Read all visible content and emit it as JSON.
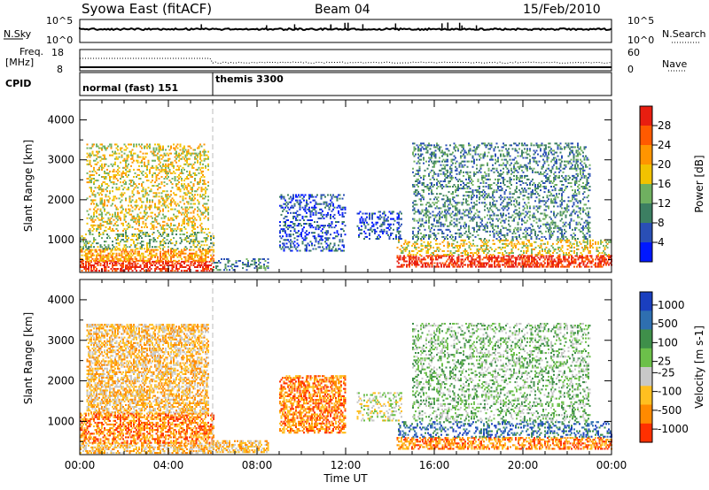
{
  "header": {
    "title": "Syowa East (fitACF)",
    "beam": "Beam 04",
    "date": "15/Feb/2010"
  },
  "summary_labels": {
    "nsky": "N.Sky",
    "freq_line1": "Freq.",
    "freq_line2": "[MHz]",
    "cpid": "CPID",
    "nsearch": "N.Search",
    "nave": "Nave",
    "nsky_ticks": [
      "10^5",
      "10^0"
    ],
    "nsearch_ticks": [
      "10^5",
      "10^0"
    ],
    "freq_ticks": [
      "18",
      "8"
    ],
    "nave_ticks": [
      "60",
      "0"
    ],
    "cpid_modes": [
      {
        "label": "normal (fast) 151",
        "start_hour": 0
      },
      {
        "label": "themis 3300",
        "start_hour": 6
      }
    ]
  },
  "chart_data": [
    {
      "type": "heatmap",
      "panel": "power",
      "ylabel": "Slant Range [km]",
      "xlabel": "Time UT",
      "xlim_hours": [
        0,
        24
      ],
      "ylim_km": [
        180,
        4500
      ],
      "yticks": [
        1000,
        2000,
        3000,
        4000
      ],
      "xticks": [
        "00:00",
        "04:00",
        "08:00",
        "12:00",
        "16:00",
        "20:00",
        "00:00"
      ],
      "colorbar": {
        "label": "Power [dB]",
        "ticks": [
          "4",
          "8",
          "12",
          "16",
          "20",
          "24",
          "28"
        ],
        "colors": [
          "#0018ff",
          "#2a4fb5",
          "#3c7f62",
          "#6fb060",
          "#f2c200",
          "#ff9500",
          "#ff5a00",
          "#e81e10"
        ]
      },
      "echo_regions": [
        {
          "t0": 0.0,
          "t1": 6.0,
          "r0": 200,
          "r1": 450,
          "level": 7
        },
        {
          "t0": 0.0,
          "t1": 6.0,
          "r0": 450,
          "r1": 750,
          "level": 5
        },
        {
          "t0": 0.0,
          "t1": 6.0,
          "r0": 750,
          "r1": 1200,
          "level": 3
        },
        {
          "t0": 0.3,
          "t1": 5.8,
          "r0": 1200,
          "r1": 3400,
          "level": 4
        },
        {
          "t0": 6.0,
          "t1": 8.5,
          "r0": 220,
          "r1": 500,
          "level": 2
        },
        {
          "t0": 9.0,
          "t1": 12.0,
          "r0": 700,
          "r1": 2100,
          "level": 1
        },
        {
          "t0": 12.5,
          "t1": 14.5,
          "r0": 1000,
          "r1": 1700,
          "level": 1
        },
        {
          "t0": 14.3,
          "t1": 24.0,
          "r0": 300,
          "r1": 600,
          "level": 7
        },
        {
          "t0": 14.3,
          "t1": 24.0,
          "r0": 600,
          "r1": 1000,
          "level": 4
        },
        {
          "t0": 15.0,
          "t1": 23.0,
          "r0": 1000,
          "r1": 3400,
          "level": 2
        }
      ]
    },
    {
      "type": "heatmap",
      "panel": "velocity",
      "ylabel": "Slant Range [km]",
      "xlabel": "Time UT",
      "xlim_hours": [
        0,
        24
      ],
      "ylim_km": [
        180,
        4500
      ],
      "yticks": [
        1000,
        2000,
        3000,
        4000
      ],
      "xticks": [
        "00:00",
        "04:00",
        "08:00",
        "12:00",
        "16:00",
        "20:00",
        "00:00"
      ],
      "colorbar": {
        "label": "Velocity [m s-1]",
        "ticks": [
          "1000",
          "500",
          "100",
          "25",
          "-25",
          "-100",
          "-500",
          "-1000"
        ],
        "colors": [
          "#1a3fbf",
          "#2e6fb0",
          "#3f8f4a",
          "#6cc04a",
          "#c8c8c8",
          "#ffbf20",
          "#ff8a00",
          "#ff3000"
        ]
      },
      "echo_regions": [
        {
          "t0": 0.0,
          "t1": 6.0,
          "r0": 200,
          "r1": 450,
          "level": 5
        },
        {
          "t0": 0.0,
          "t1": 6.0,
          "r0": 450,
          "r1": 1200,
          "level": 6
        },
        {
          "t0": 0.3,
          "t1": 5.8,
          "r0": 1200,
          "r1": 3400,
          "level": 5
        },
        {
          "t0": 6.0,
          "t1": 8.5,
          "r0": 220,
          "r1": 500,
          "level": 5
        },
        {
          "t0": 9.0,
          "t1": 12.0,
          "r0": 700,
          "r1": 2100,
          "level": 6
        },
        {
          "t0": 12.5,
          "t1": 14.5,
          "r0": 1000,
          "r1": 1700,
          "level": 4
        },
        {
          "t0": 14.3,
          "t1": 24.0,
          "r0": 300,
          "r1": 600,
          "level": 6
        },
        {
          "t0": 14.3,
          "t1": 24.0,
          "r0": 600,
          "r1": 1000,
          "level": 1
        },
        {
          "t0": 15.0,
          "t1": 23.0,
          "r0": 1000,
          "r1": 3400,
          "level": 3
        }
      ]
    }
  ]
}
